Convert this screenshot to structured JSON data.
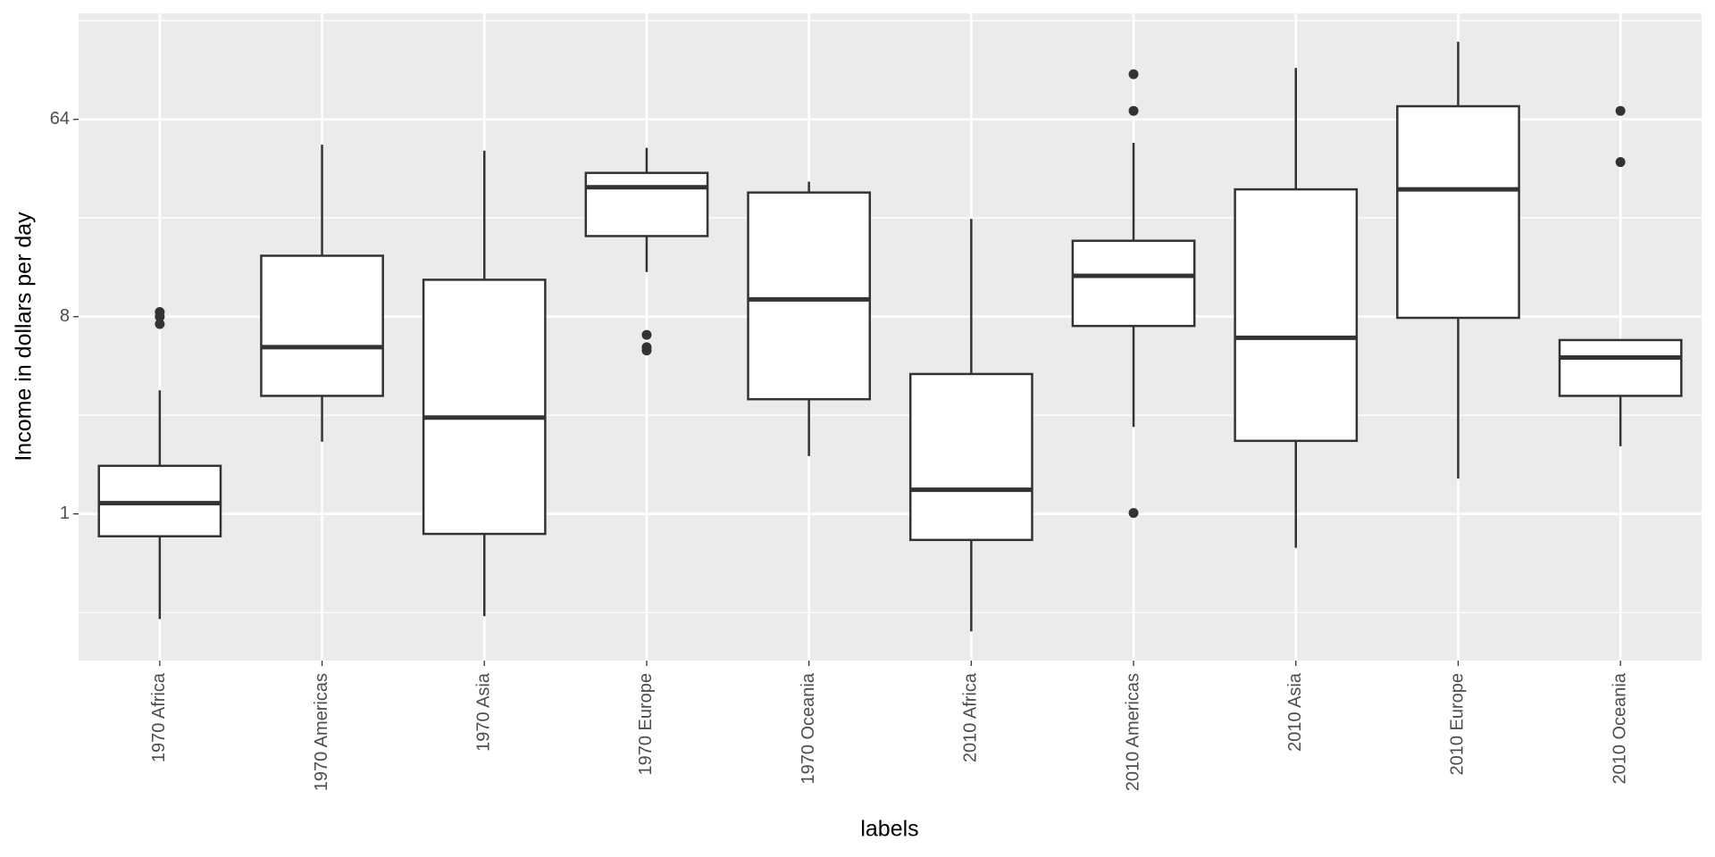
{
  "chart_data": {
    "type": "boxplot",
    "x_label": "labels",
    "y_label": "Income in dollars per day",
    "categories": [
      "1970 Africa",
      "1970 Americas",
      "1970 Asia",
      "1970 Europe",
      "1970 Oceania",
      "2010 Africa",
      "2010 Americas",
      "2010 Asia",
      "2010 Europe",
      "2010 Oceania"
    ],
    "boxes": [
      {
        "min": 0.33,
        "q1": 0.79,
        "median": 1.12,
        "q3": 1.66,
        "max": 3.68,
        "outliers": [
          8.4,
          8,
          7.4
        ]
      },
      {
        "min": 2.14,
        "q1": 3.47,
        "median": 5.8,
        "q3": 15.2,
        "max": 49,
        "outliers": []
      },
      {
        "min": 0.34,
        "q1": 0.81,
        "median": 2.76,
        "q3": 11.8,
        "max": 46,
        "outliers": []
      },
      {
        "min": 12.8,
        "q1": 18.7,
        "median": 31.3,
        "q3": 36.4,
        "max": 47.4,
        "outliers": [
          6.6,
          5.8,
          5.6
        ]
      },
      {
        "min": 1.84,
        "q1": 3.35,
        "median": 9.6,
        "q3": 29.6,
        "max": 33.2,
        "outliers": []
      },
      {
        "min": 0.29,
        "q1": 0.76,
        "median": 1.29,
        "q3": 4.37,
        "max": 22.4,
        "outliers": []
      },
      {
        "min": 2.5,
        "q1": 7.25,
        "median": 12.3,
        "q3": 17.8,
        "max": 50,
        "outliers": [
          103,
          70,
          1.01
        ]
      },
      {
        "min": 0.7,
        "q1": 2.16,
        "median": 6.4,
        "q3": 30.6,
        "max": 110,
        "outliers": []
      },
      {
        "min": 1.45,
        "q1": 7.9,
        "median": 30.6,
        "q3": 73.5,
        "max": 145,
        "outliers": []
      },
      {
        "min": 2.04,
        "q1": 3.47,
        "median": 5.2,
        "q3": 6.25,
        "max": 6.25,
        "outliers": [
          70,
          40.8
        ]
      }
    ],
    "y_log_base": 2,
    "ylim": [
      0.213,
      195.6
    ],
    "yticks": [
      1,
      8,
      64
    ],
    "grid": true,
    "color": "#333333"
  }
}
